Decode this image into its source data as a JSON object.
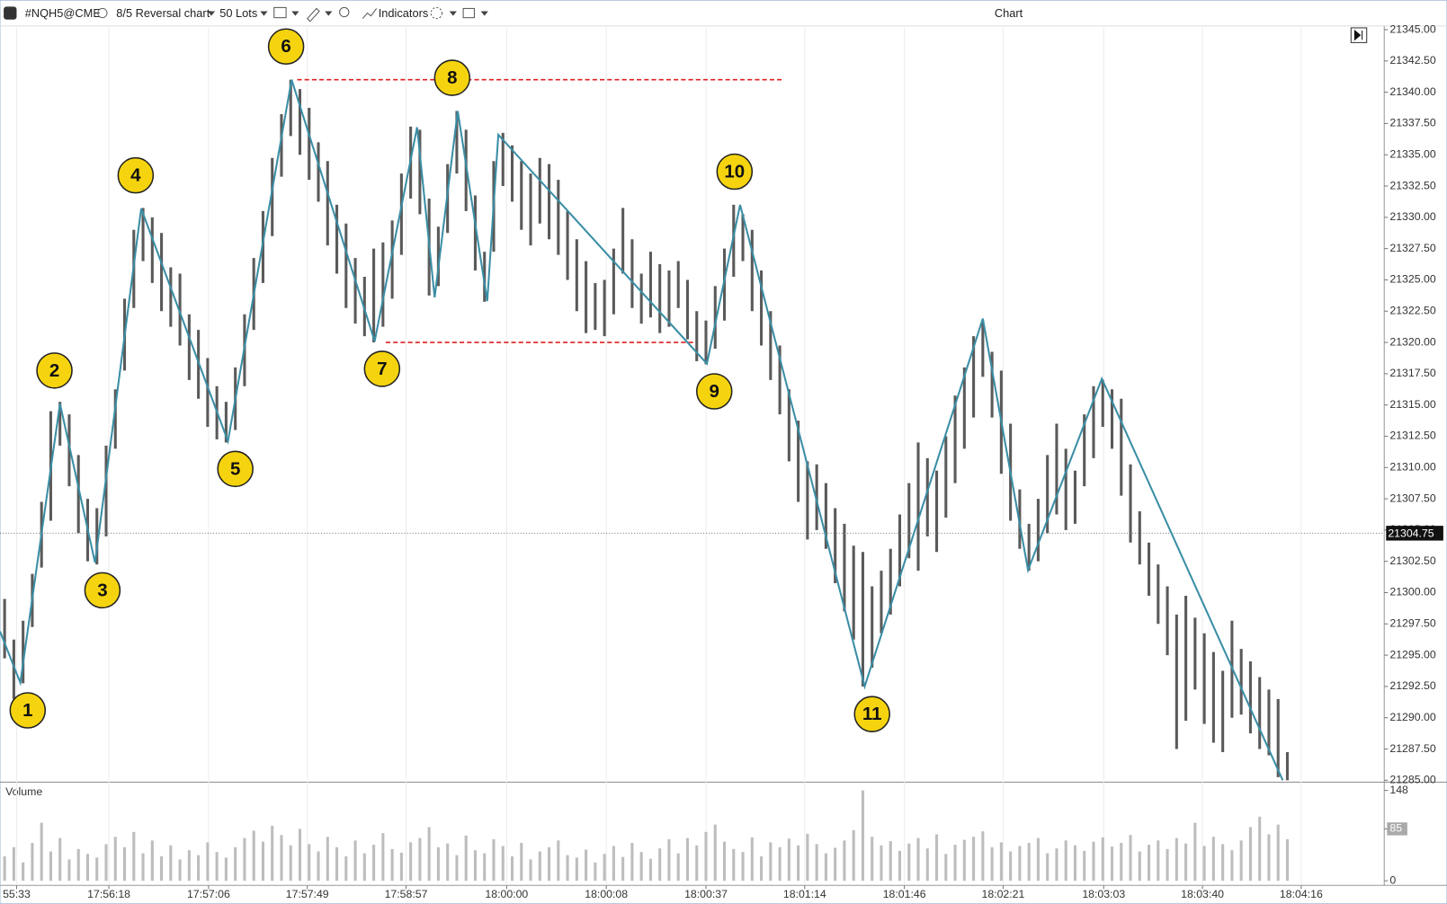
{
  "toolbar": {
    "symbol": "#NQH5@CME",
    "chart_type": "8/5 Reversal chart",
    "lots": "50 Lots",
    "indicators": "Indicators",
    "window_title": "Chart"
  },
  "chart_data": [
    {
      "type": "range-bar",
      "bar_color": "#5a5a5a",
      "high": [
        21299.5,
        21296.25,
        21297.75,
        21301.5,
        21307.25,
        21314.5,
        21315.25,
        21314.25,
        21311,
        21307.5,
        21306.75,
        21311.75,
        21316.25,
        21323.5,
        21329,
        21330.75,
        21330,
        21328.75,
        21326,
        21325.5,
        21322.25,
        21321,
        21318.75,
        21316.5,
        21315.25,
        21318,
        21322.25,
        21326.75,
        21330.5,
        21334.75,
        21338.25,
        21341,
        21340.25,
        21338.75,
        21336,
        21334.5,
        21331,
        21329.5,
        21326.75,
        21325.25,
        21327.5,
        21328,
        21329.75,
        21333.5,
        21337.25,
        21337,
        21331.5,
        21329.25,
        21334.25,
        21338.5,
        21337,
        21331.75,
        21327.25,
        21334.5,
        21336.75,
        21335.75,
        21334.5,
        21333.5,
        21334.75,
        21334.25,
        21333,
        21330.5,
        21328.25,
        21326.5,
        21324.75,
        21325,
        21327.5,
        21330.75,
        21328.25,
        21325.5,
        21327.25,
        21326.25,
        21325.75,
        21326.5,
        21325,
        21322.5,
        21321.75,
        21324.5,
        21327.5,
        21331,
        21330.25,
        21329,
        21325.75,
        21322.5,
        21319.75,
        21316.25,
        21313.75,
        21310.5,
        21310.25,
        21308.75,
        21306.75,
        21305.5,
        21303.75,
        21303.25,
        21300.5,
        21301.75,
        21303.5,
        21306.25,
        21308.75,
        21312,
        21310.75,
        21309.75,
        21312.5,
        21315.75,
        21318,
        21320.5,
        21321.75,
        21319.25,
        21317.75,
        21313.5,
        21308.25,
        21305.5,
        21307.5,
        21311,
        21313.5,
        21311.5,
        21309.75,
        21314.25,
        21316.5,
        21317,
        21316.25,
        21315.5,
        21310.25,
        21306.5,
        21304,
        21302.25,
        21300.5,
        21298.25,
        21299.75,
        21298,
        21296.75,
        21295.25,
        21293.75,
        21297.75,
        21295.5,
        21294.5,
        21293.25,
        21292.25,
        21291.5,
        21287.25
      ],
      "low": [
        21294.75,
        21291.5,
        21292.75,
        21297.25,
        21302,
        21305.75,
        21311.75,
        21308.5,
        21304.75,
        21302.5,
        21302.25,
        21304.5,
        21311.5,
        21317.75,
        21322.75,
        21326.5,
        21324.75,
        21322.5,
        21321.25,
        21319.75,
        21317,
        21315.5,
        21313.25,
        21312.25,
        21312,
        21313,
        21316.5,
        21321,
        21324.75,
        21328.5,
        21333.25,
        21336.5,
        21335,
        21333,
        21331.25,
        21327.75,
        21325.5,
        21322.75,
        21321.5,
        21320.5,
        21320,
        21321.25,
        21323.5,
        21327,
        21331.5,
        21330.25,
        21323.75,
        21324.5,
        21328.75,
        21333.5,
        21330.5,
        21325.75,
        21323.25,
        21327.25,
        21332.5,
        21331.25,
        21329,
        21327.75,
        21329.5,
        21328.25,
        21327,
        21325,
        21322.5,
        21320.75,
        21321,
        21320.5,
        21322.25,
        21325.5,
        21322.75,
        21321.5,
        21322,
        21320.75,
        21321.25,
        21322.75,
        21320.25,
        21318.5,
        21318.25,
        21319.5,
        21321.75,
        21325.25,
        21326.5,
        21322.5,
        21319.75,
        21317,
        21314.25,
        21310.5,
        21307.25,
        21304.25,
        21305,
        21303.5,
        21300.75,
        21298.5,
        21296.25,
        21292.5,
        21294,
        21296.75,
        21298.25,
        21300.5,
        21302.75,
        21301.75,
        21304.5,
        21303.25,
        21306,
        21308.75,
        21311.5,
        21314,
        21317.25,
        21314,
        21309.5,
        21305.75,
        21303.5,
        21301.75,
        21302.5,
        21304.75,
        21306.25,
        21305,
        21305.5,
        21308.5,
        21310.75,
        21313.25,
        21311.5,
        21307.75,
        21304,
        21302.25,
        21299.75,
        21297.5,
        21295,
        21287.5,
        21289.75,
        21292.25,
        21289.5,
        21288,
        21287.25,
        21290,
        21290.25,
        21288.75,
        21287.5,
        21287,
        21285.25,
        21285
      ],
      "zigzag": {
        "color": "#3a8ea5",
        "x": [
          0,
          2.2,
          6.5,
          10.3,
          15.3,
          24.7,
          31.6,
          40.6,
          45.2,
          47.1,
          49.6,
          52.8,
          54,
          76.6,
          80.2,
          93.7,
          106.5,
          111.4,
          119.4,
          139
        ],
        "values": [
          21296.9,
          21292.8,
          21315.1,
          21302.4,
          21330.7,
          21312.1,
          21341,
          21320.1,
          21337.2,
          21323.6,
          21338.5,
          21323.3,
          21336.6,
          21318.3,
          21331,
          21292.5,
          21321.9,
          21301.8,
          21317.1,
          21285
        ],
        "point_labels": [
          null,
          "1",
          "2",
          "3",
          "4",
          "5",
          "6",
          "7",
          null,
          null,
          "8",
          null,
          null,
          "9",
          "10",
          "11",
          null,
          null,
          null,
          null
        ]
      },
      "level_color": "#e02020",
      "levels": [
        {
          "value": 21341,
          "x": [
            32.2,
            85
          ]
        },
        {
          "value": 21320,
          "x": [
            41.8,
            75.2
          ]
        }
      ],
      "last_price": 21304.75,
      "xlim": [
        0,
        150
      ],
      "xgrid": true,
      "ylim": [
        21285,
        21345
      ],
      "yticks": [
        {
          "value": 21285,
          "label": "21285.00"
        },
        {
          "value": 21287.5,
          "label": "21287.50"
        },
        {
          "value": 21290,
          "label": "21290.00"
        },
        {
          "value": 21292.5,
          "label": "21292.50"
        },
        {
          "value": 21295,
          "label": "21295.00"
        },
        {
          "value": 21297.5,
          "label": "21297.50"
        },
        {
          "value": 21300,
          "label": "21300.00"
        },
        {
          "value": 21302.5,
          "label": "21302.50"
        },
        {
          "value": 21305,
          "label": "21305.00"
        },
        {
          "value": 21307.5,
          "label": "21307.50"
        },
        {
          "value": 21310,
          "label": "21310.00"
        },
        {
          "value": 21312.5,
          "label": "21312.50"
        },
        {
          "value": 21315,
          "label": "21315.00"
        },
        {
          "value": 21317.5,
          "label": "21317.50"
        },
        {
          "value": 21320,
          "label": "21320.00"
        },
        {
          "value": 21322.5,
          "label": "21322.50"
        },
        {
          "value": 21325,
          "label": "21325.00"
        },
        {
          "value": 21327.5,
          "label": "21327.50"
        },
        {
          "value": 21330,
          "label": "21330.00"
        },
        {
          "value": 21332.5,
          "label": "21332.50"
        },
        {
          "value": 21335,
          "label": "21335.00"
        },
        {
          "value": 21337.5,
          "label": "21337.50"
        },
        {
          "value": 21340,
          "label": "21340.00"
        },
        {
          "value": 21342.5,
          "label": "21342.50"
        },
        {
          "value": 21345,
          "label": "21345.00"
        }
      ]
    },
    {
      "type": "bar",
      "title": "Volume",
      "color": "#bdbdbd",
      "values": [
        40,
        55,
        30,
        62,
        95,
        48,
        70,
        35,
        52,
        44,
        38,
        60,
        72,
        55,
        80,
        45,
        66,
        40,
        58,
        35,
        50,
        42,
        63,
        47,
        38,
        55,
        70,
        82,
        64,
        90,
        75,
        58,
        85,
        60,
        48,
        72,
        55,
        40,
        66,
        45,
        59,
        78,
        52,
        46,
        63,
        70,
        88,
        55,
        61,
        42,
        74,
        50,
        45,
        68,
        57,
        40,
        62,
        35,
        48,
        55,
        66,
        42,
        38,
        51,
        30,
        44,
        57,
        39,
        62,
        47,
        36,
        53,
        68,
        45,
        70,
        58,
        80,
        92,
        64,
        52,
        47,
        71,
        40,
        63,
        55,
        69,
        58,
        77,
        60,
        45,
        54,
        66,
        83,
        148,
        72,
        58,
        65,
        49,
        61,
        70,
        53,
        76,
        44,
        59,
        67,
        72,
        81,
        55,
        63,
        48,
        57,
        62,
        70,
        45,
        53,
        66,
        58,
        49,
        64,
        71,
        56,
        62,
        75,
        48,
        59,
        66,
        52,
        70,
        61,
        95,
        57,
        72,
        60,
        50,
        66,
        88,
        105,
        76,
        92,
        68
      ],
      "xlim": [
        0,
        150
      ],
      "ylim": [
        0,
        148
      ],
      "yticks": [
        0,
        85,
        148
      ],
      "xticks": [
        {
          "value": 1.8,
          "label": "55:33"
        },
        {
          "value": 11.8,
          "label": "17:56:18"
        },
        {
          "value": 22.6,
          "label": "17:57:06"
        },
        {
          "value": 33.3,
          "label": "17:57:49"
        },
        {
          "value": 44,
          "label": "17:58:57"
        },
        {
          "value": 54.9,
          "label": "18:00:00"
        },
        {
          "value": 65.7,
          "label": "18:00:08"
        },
        {
          "value": 76.5,
          "label": "18:00:37"
        },
        {
          "value": 87.2,
          "label": "18:01:14"
        },
        {
          "value": 98,
          "label": "18:01:46"
        },
        {
          "value": 108.7,
          "label": "18:02:21"
        },
        {
          "value": 119.6,
          "label": "18:03:03"
        },
        {
          "value": 130.3,
          "label": "18:03:40"
        },
        {
          "value": 141,
          "label": "18:04:16"
        }
      ]
    }
  ]
}
